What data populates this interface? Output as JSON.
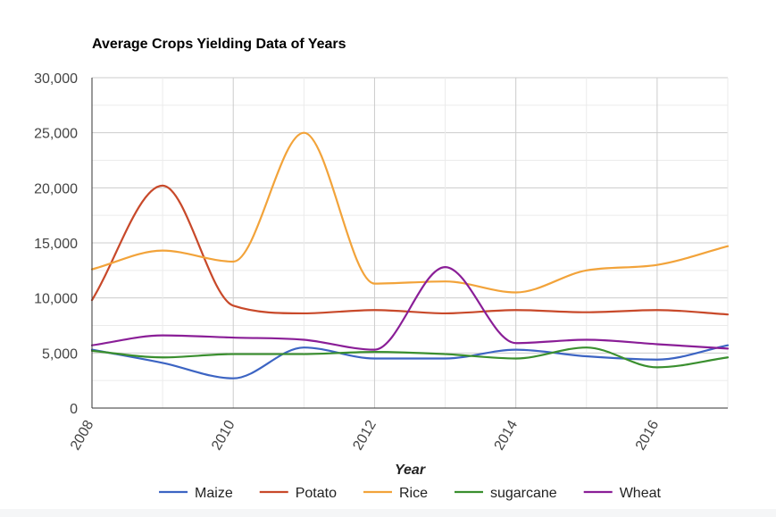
{
  "chart_data": {
    "type": "line",
    "title": "Average Crops Yielding Data of Years",
    "xlabel": "Year",
    "ylabel": "",
    "x": [
      2008,
      2009,
      2010,
      2011,
      2012,
      2013,
      2014,
      2015,
      2016,
      2017
    ],
    "xlim": [
      2008,
      2017
    ],
    "ylim": [
      0,
      30000
    ],
    "x_ticks": [
      "2008",
      "2010",
      "2012",
      "2014",
      "2016"
    ],
    "y_ticks": [
      "0",
      "5,000",
      "10,000",
      "15,000",
      "20,000",
      "25,000",
      "30,000"
    ],
    "grid": true,
    "legend_position": "bottom",
    "smooth": true,
    "series": [
      {
        "name": "Maize",
        "color": "#3c64c3",
        "values": [
          5300,
          4100,
          2700,
          5500,
          4500,
          4500,
          5300,
          4700,
          4400,
          5700
        ]
      },
      {
        "name": "Potato",
        "color": "#c8492a",
        "values": [
          9800,
          20200,
          9300,
          8600,
          8900,
          8600,
          8900,
          8700,
          8900,
          8500
        ]
      },
      {
        "name": "Rice",
        "color": "#f2a33a",
        "values": [
          12600,
          14300,
          13300,
          25000,
          11300,
          11500,
          10500,
          12500,
          13000,
          14700
        ]
      },
      {
        "name": "sugarcane",
        "color": "#3a8f2f",
        "values": [
          5200,
          4600,
          4900,
          4900,
          5100,
          4900,
          4500,
          5500,
          3700,
          4600
        ]
      },
      {
        "name": "Wheat",
        "color": "#8a1e97",
        "values": [
          5700,
          6600,
          6400,
          6200,
          5300,
          12800,
          5900,
          6200,
          5800,
          5400
        ]
      }
    ]
  }
}
